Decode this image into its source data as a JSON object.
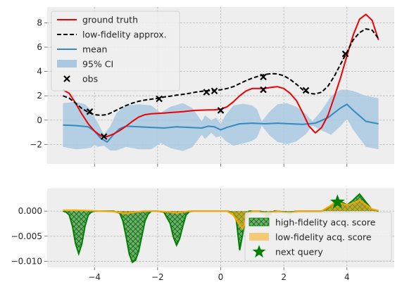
{
  "chart_data": [
    {
      "type": "line",
      "xlim": [
        -5.5,
        5.5
      ],
      "ylim": [
        -3.6,
        9.3
      ],
      "grid": true,
      "legend_placement": "upper-left",
      "x_ticks": [
        -4,
        -2,
        0,
        2,
        4
      ],
      "y_ticks": [
        -2,
        0,
        2,
        4,
        6,
        8
      ],
      "y_tick_labels": [
        "−2",
        "0",
        "2",
        "4",
        "6",
        "8"
      ],
      "colors": {
        "ground_truth": "#ee0000",
        "low_fidelity": "#000000",
        "mean": "#348abd",
        "ci": "#a9c9e0",
        "obs": "#000000"
      },
      "series": [
        {
          "name": "ground truth",
          "x": [
            -5.0,
            -4.8,
            -4.6,
            -4.4,
            -4.2,
            -4.0,
            -3.8,
            -3.6,
            -3.4,
            -3.2,
            -3.0,
            -2.8,
            -2.6,
            -2.4,
            -2.2,
            -2.0,
            -1.8,
            -1.6,
            -1.4,
            -1.2,
            -1.0,
            -0.8,
            -0.6,
            -0.4,
            -0.2,
            0.0,
            0.2,
            0.4,
            0.6,
            0.8,
            1.0,
            1.2,
            1.4,
            1.6,
            1.8,
            2.0,
            2.2,
            2.4,
            2.6,
            2.8,
            3.0,
            3.2,
            3.4,
            3.6,
            3.8,
            4.0,
            4.2,
            4.4,
            4.6,
            4.8,
            5.0
          ],
          "y": [
            2.5,
            2.2,
            1.4,
            0.5,
            -0.3,
            -0.9,
            -1.3,
            -1.35,
            -1.15,
            -0.85,
            -0.5,
            -0.1,
            0.25,
            0.45,
            0.52,
            0.55,
            0.58,
            0.62,
            0.66,
            0.7,
            0.75,
            0.8,
            0.82,
            0.84,
            0.85,
            0.9,
            1.1,
            1.5,
            2.0,
            2.4,
            2.6,
            2.6,
            2.6,
            2.7,
            2.75,
            2.6,
            2.2,
            1.6,
            0.6,
            -0.5,
            -1.05,
            -0.6,
            0.4,
            1.9,
            3.5,
            5.3,
            7.0,
            8.3,
            8.7,
            8.2,
            6.6
          ]
        },
        {
          "name": "low-fidelity approx.",
          "x": [
            -5.0,
            -4.8,
            -4.6,
            -4.4,
            -4.2,
            -4.0,
            -3.8,
            -3.6,
            -3.4,
            -3.2,
            -3.0,
            -2.8,
            -2.6,
            -2.4,
            -2.2,
            -2.0,
            -1.8,
            -1.6,
            -1.4,
            -1.2,
            -1.0,
            -0.8,
            -0.6,
            -0.4,
            -0.2,
            0.0,
            0.2,
            0.4,
            0.6,
            0.8,
            1.0,
            1.2,
            1.4,
            1.6,
            1.8,
            2.0,
            2.2,
            2.4,
            2.6,
            2.8,
            3.0,
            3.2,
            3.4,
            3.6,
            3.8,
            4.0,
            4.2,
            4.4,
            4.6,
            4.8,
            5.0
          ],
          "y": [
            2.0,
            1.8,
            1.4,
            0.95,
            0.65,
            0.45,
            0.4,
            0.45,
            0.7,
            0.95,
            1.2,
            1.4,
            1.55,
            1.65,
            1.72,
            1.8,
            1.9,
            1.97,
            2.05,
            2.12,
            2.2,
            2.3,
            2.37,
            2.42,
            2.46,
            2.5,
            2.6,
            2.75,
            3.0,
            3.25,
            3.45,
            3.62,
            3.75,
            3.82,
            3.8,
            3.65,
            3.35,
            2.95,
            2.5,
            2.2,
            2.15,
            2.3,
            2.8,
            3.6,
            4.6,
            5.6,
            6.6,
            7.2,
            7.5,
            7.4,
            6.7
          ]
        },
        {
          "name": "mean",
          "x": [
            -5.0,
            -4.6,
            -4.2,
            -4.0,
            -3.8,
            -3.6,
            -3.4,
            -3.2,
            -3.0,
            -2.6,
            -2.2,
            -1.8,
            -1.4,
            -1.0,
            -0.6,
            -0.4,
            -0.2,
            0.0,
            0.2,
            0.6,
            1.0,
            1.4,
            1.8,
            2.2,
            2.6,
            3.0,
            3.4,
            3.8,
            4.0,
            4.2,
            4.6,
            5.0
          ],
          "y": [
            -0.4,
            -0.45,
            -0.55,
            -0.9,
            -1.5,
            -1.8,
            -1.2,
            -0.7,
            -0.5,
            -0.55,
            -0.6,
            -0.65,
            -0.55,
            -0.6,
            -0.65,
            -0.5,
            -0.55,
            -0.8,
            -0.6,
            -0.3,
            -0.25,
            -0.3,
            -0.25,
            -0.3,
            -0.35,
            -0.25,
            0.2,
            1.0,
            1.3,
            0.8,
            -0.1,
            -0.3
          ]
        },
        {
          "name": "95% CI",
          "x": [
            -5.0,
            -4.6,
            -4.3,
            -4.1,
            -4.0,
            -3.9,
            -3.7,
            -3.5,
            -3.3,
            -3.0,
            -2.6,
            -2.2,
            -1.9,
            -1.6,
            -1.2,
            -0.9,
            -0.6,
            -0.5,
            -0.3,
            -0.15,
            0.0,
            0.15,
            0.4,
            0.7,
            1.0,
            1.15,
            1.3,
            1.55,
            1.8,
            2.1,
            2.4,
            2.7,
            2.9,
            3.2,
            3.5,
            3.8,
            4.0,
            4.2,
            4.6,
            5.0
          ],
          "upper": [
            1.4,
            1.5,
            1.3,
            0.8,
            0.25,
            -0.2,
            -1.2,
            -0.5,
            0.6,
            1.2,
            1.3,
            1.2,
            0.6,
            1.1,
            1.4,
            1.0,
            -0.1,
            0.4,
            0.0,
            0.2,
            -0.3,
            0.4,
            1.2,
            1.35,
            1.2,
            0.9,
            -0.1,
            0.7,
            1.3,
            1.4,
            1.1,
            0.5,
            -0.1,
            0.8,
            2.0,
            2.5,
            2.5,
            2.4,
            2.0,
            1.8
          ]
        },
        {
          "name": "obs",
          "x": [
            -4.15,
            -3.7,
            -1.95,
            -0.45,
            -0.2,
            0.0,
            1.35,
            1.35,
            2.7,
            3.95
          ],
          "y": [
            0.7,
            -1.35,
            1.75,
            2.3,
            2.4,
            0.8,
            3.55,
            2.5,
            2.45,
            5.45
          ]
        }
      ]
    },
    {
      "type": "area",
      "xlim": [
        -5.5,
        5.5
      ],
      "ylim": [
        -0.0112,
        0.0045
      ],
      "grid": true,
      "legend_placement": "center-right",
      "x_ticks": [
        -4,
        -2,
        0,
        2,
        4
      ],
      "x_tick_labels": [
        "−4",
        "−2",
        "0",
        "2",
        "4"
      ],
      "y_ticks": [
        0.0,
        -0.005,
        -0.01
      ],
      "y_tick_labels": [
        "0.000",
        "−0.005",
        "−0.010"
      ],
      "colors": {
        "high_fidelity": "#008000",
        "low_fidelity": "#ffa500",
        "next_query": "#008000"
      },
      "series": [
        {
          "name": "high-fidelity acq. score",
          "x": [
            -5.0,
            -4.9,
            -4.8,
            -4.7,
            -4.6,
            -4.5,
            -4.4,
            -4.3,
            -4.2,
            -4.1,
            -4.0,
            -3.8,
            -3.6,
            -3.4,
            -3.2,
            -3.1,
            -3.0,
            -2.9,
            -2.8,
            -2.7,
            -2.6,
            -2.5,
            -2.4,
            -2.3,
            -2.2,
            -2.0,
            -1.8,
            -1.6,
            -1.5,
            -1.4,
            -1.3,
            -1.2,
            -1.1,
            -1.0,
            -0.9,
            -0.8,
            -0.6,
            -0.4,
            -0.2,
            0.0,
            0.2,
            0.4,
            0.5,
            0.6,
            0.7,
            0.8,
            0.9,
            1.0,
            1.2,
            1.4,
            1.5,
            1.6,
            1.7,
            1.8,
            2.0,
            2.2,
            2.4,
            2.6,
            2.8,
            3.0,
            3.2,
            3.4,
            3.6,
            3.8,
            3.9,
            4.0,
            4.2,
            4.4,
            4.6,
            4.8,
            5.0
          ],
          "y": [
            0.0,
            -0.0002,
            -0.0008,
            -0.003,
            -0.0065,
            -0.0085,
            -0.0065,
            -0.003,
            -0.0008,
            -0.0002,
            0.0,
            0.0,
            0.0,
            0.0,
            -0.0004,
            -0.002,
            -0.005,
            -0.0085,
            -0.0102,
            -0.0098,
            -0.008,
            -0.005,
            -0.002,
            -0.0006,
            0.0,
            0.0,
            -0.0002,
            -0.0025,
            -0.0052,
            -0.0068,
            -0.0055,
            -0.003,
            -0.0008,
            -0.0001,
            0.0,
            0.0,
            0.0,
            0.0,
            0.0,
            0.0,
            0.0,
            -0.0003,
            -0.002,
            -0.0078,
            -0.0045,
            -0.0008,
            0.0,
            0.0,
            0.0,
            -0.0002,
            -0.0012,
            -0.0003,
            0.0,
            0.0,
            -0.0002,
            -0.0003,
            0.0,
            0.0,
            0.0,
            0.0,
            0.0,
            0.0005,
            0.0017,
            0.0018,
            0.0016,
            0.0012,
            0.0022,
            0.0034,
            0.0018,
            0.0003,
            0.0
          ]
        },
        {
          "name": "low-fidelity acq. score",
          "x": [
            -5.0,
            -4.6,
            -4.2,
            -3.8,
            -3.4,
            -3.2,
            -3.0,
            -2.8,
            -2.6,
            -2.4,
            -2.0,
            -1.6,
            -1.4,
            -1.2,
            -1.0,
            -0.6,
            -0.2,
            0.2,
            0.4,
            0.6,
            0.7,
            0.8,
            1.0,
            1.2,
            1.4,
            1.5,
            1.6,
            1.8,
            2.0,
            2.2,
            2.4,
            2.6,
            2.8,
            3.0,
            3.2,
            3.4,
            3.6,
            3.8,
            4.0,
            4.2,
            4.4,
            4.6,
            4.8,
            5.0
          ],
          "y": [
            0.0002,
            0.0002,
            0.0001,
            0.0,
            -0.0001,
            -0.0003,
            -0.0005,
            -0.0003,
            -0.0001,
            0.0,
            0.0,
            -0.0002,
            -0.0004,
            -0.0002,
            0.0,
            0.0,
            0.0,
            0.0,
            -0.0008,
            -0.0028,
            -0.0035,
            -0.0015,
            0.0,
            0.0,
            -0.0008,
            -0.0012,
            -0.0003,
            0.0,
            -0.0003,
            -0.0006,
            0.0,
            0.0,
            0.0,
            0.0,
            0.0,
            0.0008,
            0.0016,
            0.0016,
            0.0012,
            0.0016,
            0.0022,
            0.0013,
            0.0004,
            0.0001
          ]
        },
        {
          "name": "next query",
          "x": [
            3.7
          ],
          "y": [
            0.0018
          ]
        }
      ]
    }
  ],
  "legend_top": [
    {
      "label": "ground truth",
      "kind": "line",
      "color": "#ee0000",
      "dash": ""
    },
    {
      "label": "low-fidelity approx.",
      "kind": "line",
      "color": "#000000",
      "dash": "6,3"
    },
    {
      "label": "mean",
      "kind": "line",
      "color": "#348abd",
      "dash": ""
    },
    {
      "label": "95% CI",
      "kind": "patch",
      "color": "#a9c9e0"
    },
    {
      "label": "obs",
      "kind": "x",
      "color": "#000000"
    }
  ],
  "legend_bottom": [
    {
      "label": "high-fidelity acq. score",
      "kind": "hatch",
      "color": "#008000"
    },
    {
      "label": "low-fidelity acq. score",
      "kind": "patch",
      "color": "#ffa500"
    },
    {
      "label": "next query",
      "kind": "star",
      "color": "#008000"
    }
  ]
}
